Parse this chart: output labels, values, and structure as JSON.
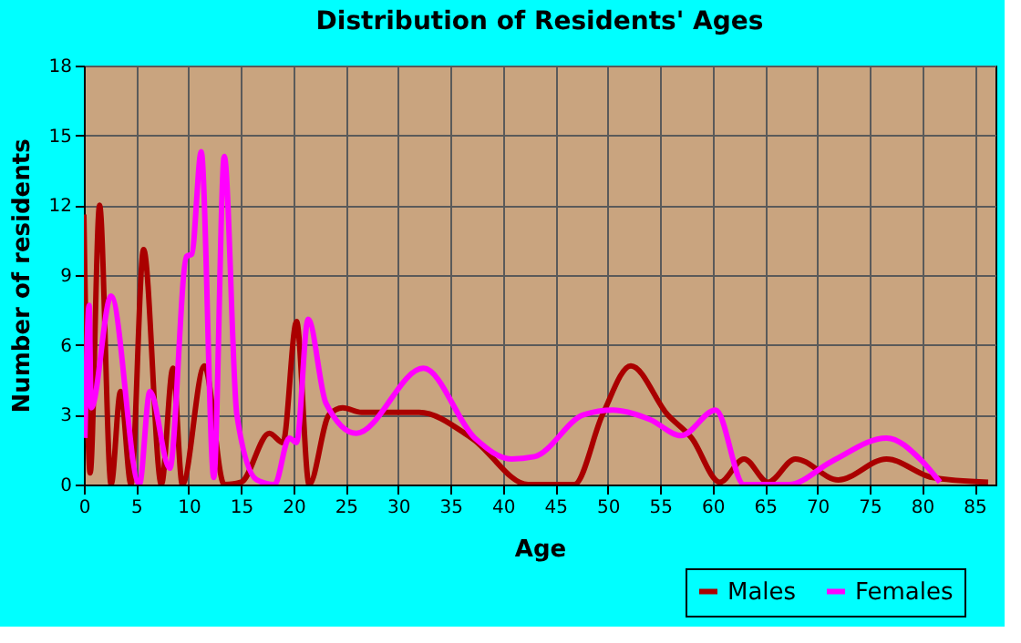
{
  "chart_data": {
    "type": "line",
    "title": "Distribution of Residents' Ages",
    "xlabel": "Age",
    "ylabel": "Number of residents",
    "xlim": [
      0,
      87
    ],
    "xticks": [
      0,
      5,
      10,
      15,
      20,
      25,
      30,
      35,
      40,
      45,
      50,
      55,
      60,
      65,
      70,
      75,
      80,
      85
    ],
    "ylim": [
      0,
      18
    ],
    "yticks": [
      0,
      3,
      6,
      9,
      12,
      15,
      18
    ],
    "grid": true,
    "legend": "bottom right",
    "line_style": "solid",
    "series": [
      {
        "name": "Males",
        "color": "#aa0000",
        "x": [
          0,
          0.6,
          1.5,
          2.6,
          3.5,
          4.5,
          5.7,
          7.4,
          8.5,
          9.4,
          11.5,
          13.4,
          15,
          17.7,
          19,
          20.3,
          21.5,
          23.4,
          24.7,
          26.5,
          32,
          37,
          42.4,
          46.8,
          49.5,
          52.2,
          55.7,
          58,
          60.7,
          63,
          65.3,
          67.9,
          72,
          76.6,
          81,
          86.3
        ],
        "values": [
          11.6,
          0.5,
          12,
          0,
          4,
          0,
          10.1,
          0,
          5,
          0,
          5.1,
          0,
          0.1,
          2.2,
          1.8,
          7,
          0,
          3,
          3.3,
          3.1,
          3.1,
          2,
          0,
          0,
          3,
          5.1,
          3,
          2,
          0.1,
          1.1,
          0.1,
          1.1,
          0.2,
          1.1,
          0.3,
          0.1
        ]
      },
      {
        "name": "Females",
        "color": "#ff00ff",
        "x": [
          0.1,
          0.5,
          0.7,
          2.6,
          5.3,
          6.3,
          8.2,
          9.8,
          10.3,
          11.2,
          12.4,
          13.4,
          14.6,
          16.5,
          18.2,
          19.6,
          20.3,
          21.4,
          23.1,
          26,
          32.4,
          37.3,
          40.8,
          43,
          47.7,
          50.5,
          54,
          57,
          60.3,
          63,
          67.3,
          71.4,
          76.6,
          80,
          81.7
        ],
        "values": [
          2,
          7.7,
          3.3,
          8.1,
          0,
          4,
          0.7,
          9.8,
          9.9,
          14.3,
          0.3,
          14.1,
          3,
          0.2,
          0,
          2,
          1.8,
          7.1,
          3.5,
          2.2,
          5,
          2,
          1.1,
          1.2,
          3,
          3.2,
          2.8,
          2.1,
          3.2,
          0,
          0,
          1,
          2,
          1,
          0.1
        ]
      }
    ]
  }
}
